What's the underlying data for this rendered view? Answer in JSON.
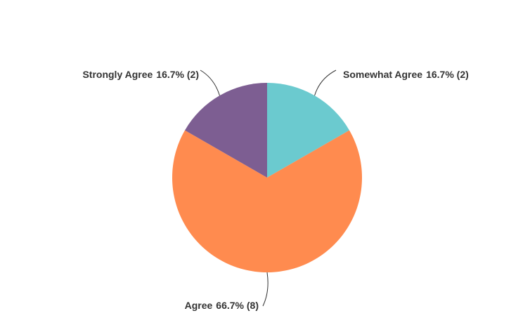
{
  "chart_data": {
    "type": "pie",
    "categories": [
      "Somewhat Agree",
      "Agree",
      "Strongly Agree"
    ],
    "values": [
      16.7,
      66.7,
      16.7
    ],
    "value_labels": [
      "16.7% (2)",
      "66.7% (8)",
      "16.7% (2)"
    ],
    "colors": [
      "#6bcacf",
      "#ff8b4f",
      "#7d5e92"
    ]
  }
}
